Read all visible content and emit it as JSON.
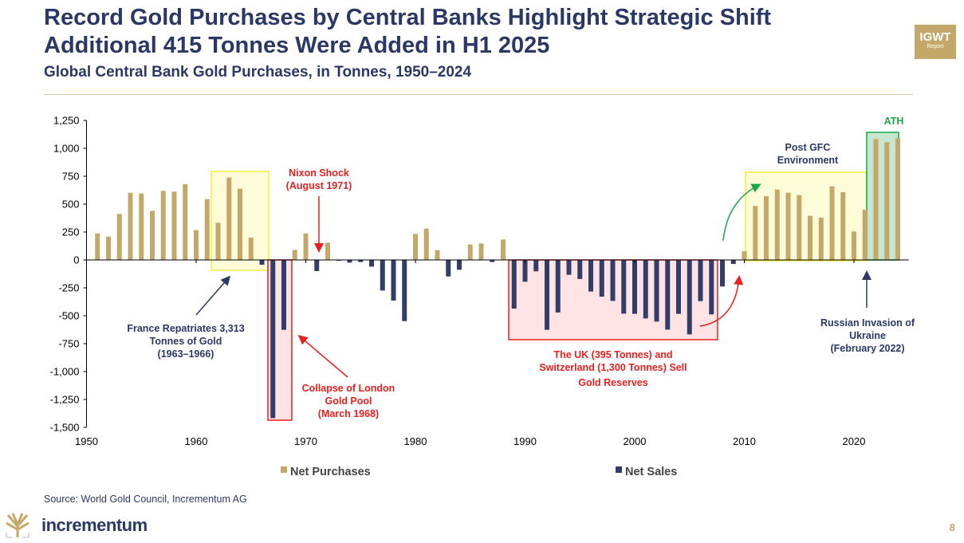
{
  "header": {
    "title_line1": "Record Gold Purchases by Central Banks Highlight Strategic Shift",
    "title_line2": "Additional 415 Tonnes Were Added in H1 2025",
    "subtitle": "Global Central Bank Gold Purchases, in Tonnes, 1950–2024",
    "badge_title": "IGWT",
    "badge_sub": "Report"
  },
  "colors": {
    "purchases": "#c4a86a",
    "sales": "#333e68",
    "title": "#2b3866",
    "red": "#e8201e",
    "green": "#1aa64b",
    "yellow": "#f5ee3a"
  },
  "chart_data": {
    "type": "bar",
    "title": "Global Central Bank Gold Purchases, in Tonnes, 1950–2024",
    "xlabel": "",
    "ylabel": "Tonnes",
    "ylim": [
      -1500,
      1250
    ],
    "xlim": [
      1950,
      2025
    ],
    "y_ticks": [
      1250,
      1000,
      750,
      500,
      250,
      0,
      -250,
      -500,
      -750,
      -1000,
      -1250,
      -1500
    ],
    "y_tick_labels": [
      "1,250",
      "1,000",
      "750",
      "500",
      "250",
      "0",
      "-250",
      "-500",
      "-750",
      "-1,000",
      "-1,250",
      "-1,500"
    ],
    "x_ticks": [
      1950,
      1960,
      1970,
      1980,
      1990,
      2000,
      2010,
      2020
    ],
    "x_tick_labels": [
      "1950",
      "1960",
      "1970",
      "1980",
      "1990",
      "2000",
      "2010",
      "2020"
    ],
    "legend": {
      "placement": "bottom",
      "entries": [
        "Net Purchases",
        "Net Sales"
      ]
    },
    "years": [
      1951,
      1952,
      1953,
      1954,
      1955,
      1956,
      1957,
      1958,
      1959,
      1960,
      1961,
      1962,
      1963,
      1964,
      1965,
      1966,
      1967,
      1968,
      1969,
      1970,
      1971,
      1972,
      1973,
      1974,
      1975,
      1976,
      1977,
      1978,
      1979,
      1980,
      1981,
      1982,
      1983,
      1984,
      1985,
      1986,
      1987,
      1988,
      1989,
      1990,
      1991,
      1992,
      1993,
      1994,
      1995,
      1996,
      1997,
      1998,
      1999,
      2000,
      2001,
      2002,
      2003,
      2004,
      2005,
      2006,
      2007,
      2008,
      2009,
      2010,
      2011,
      2012,
      2013,
      2014,
      2015,
      2016,
      2017,
      2018,
      2019,
      2020,
      2021,
      2022,
      2023,
      2024
    ],
    "values": [
      238,
      210,
      412,
      602,
      595,
      440,
      619,
      612,
      679,
      267,
      545,
      333,
      738,
      638,
      200,
      -43,
      -1417,
      -626,
      90,
      238,
      -100,
      155,
      -7,
      -24,
      -19,
      -60,
      -274,
      -364,
      -548,
      233,
      281,
      88,
      -148,
      -88,
      138,
      148,
      -19,
      183,
      -436,
      -195,
      -102,
      -626,
      -471,
      -133,
      -171,
      -283,
      -329,
      -367,
      -481,
      -483,
      -524,
      -552,
      -624,
      -483,
      -667,
      -369,
      -488,
      -238,
      -36,
      79,
      483,
      571,
      631,
      602,
      581,
      395,
      379,
      660,
      607,
      255,
      450,
      1083,
      1055,
      1090
    ],
    "annotations": {
      "nixon": [
        "Nixon Shock",
        "(August 1971)"
      ],
      "france": [
        "France Repatriates 3,313",
        "Tonnes of Gold",
        "(1963–1966)"
      ],
      "london": [
        "Collapse of London",
        "Gold Pool",
        "(March 1968)"
      ],
      "uk": [
        "The UK (395 Tonnes) and",
        "Switzerland (1,300 Tonnes) Sell",
        "Gold Reserves"
      ],
      "gfc": [
        "Post GFC",
        "Environment"
      ],
      "ath": "ATH",
      "russia": [
        "Russian Invasion of",
        "Ukraine",
        "(February 2022)"
      ]
    }
  },
  "footer": {
    "source": "Source: World Gold Council, Incrementum AG",
    "logo_text": "incrementum",
    "page_number": "8"
  }
}
